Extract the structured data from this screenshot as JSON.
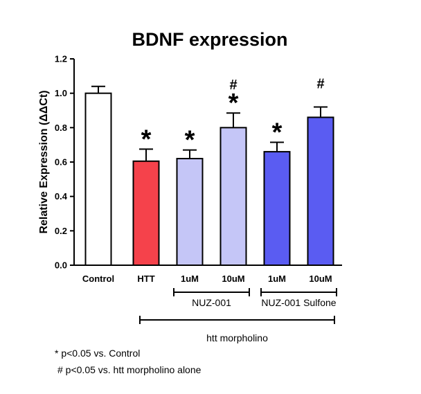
{
  "chart_data": {
    "type": "bar",
    "title": "BDNF expression",
    "ylabel": "Relative Expression (ΔΔCt)",
    "xlabel": "",
    "ylim": [
      0,
      1.2
    ],
    "yticks": [
      "0.0",
      "0.2",
      "0.4",
      "0.6",
      "0.8",
      "1.0",
      "1.2"
    ],
    "categories": [
      "Control",
      "HTT",
      "1uM",
      "10uM",
      "1uM",
      "10uM"
    ],
    "values": [
      1.0,
      0.605,
      0.62,
      0.8,
      0.66,
      0.86
    ],
    "errors": [
      0.04,
      0.07,
      0.05,
      0.085,
      0.055,
      0.06
    ],
    "colors": [
      "#ffffff",
      "#f5424b",
      "#c5c6f7",
      "#c5c6f7",
      "#5a5cf2",
      "#5a5cf2"
    ],
    "star": [
      "",
      "*",
      "*",
      "*",
      "*",
      ""
    ],
    "hash": [
      "",
      "",
      "",
      "#",
      "",
      "#"
    ],
    "groups": [
      {
        "label": "NUZ-001",
        "from": 2,
        "to": 3
      },
      {
        "label": "NUZ-001 Sulfone",
        "from": 4,
        "to": 5
      },
      {
        "label": "htt morpholino",
        "from": 1,
        "to": 5
      }
    ],
    "legend": "none",
    "grid": false
  },
  "footnotes": {
    "star": "* p<0.05 vs. Control",
    "hash": "# p<0.05 vs. htt morpholino alone"
  }
}
